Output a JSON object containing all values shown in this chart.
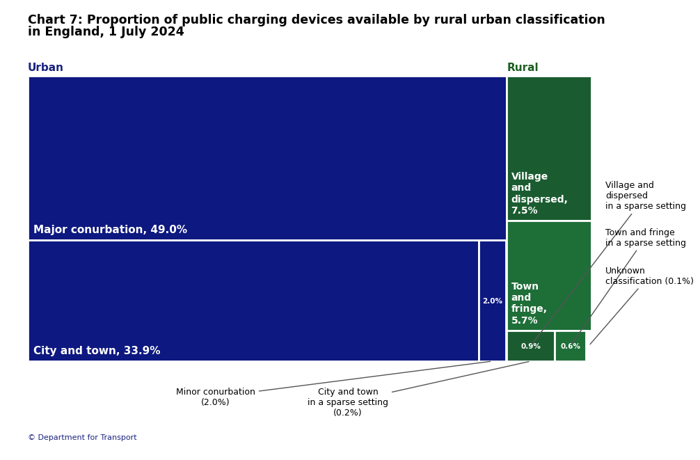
{
  "title_line1": "Chart 7: Proportion of public charging devices available by rural urban classification",
  "title_line2": "in England, 1 July 2024",
  "title_fontsize": 12.5,
  "background_color": "#ffffff",
  "footer": "© Department for Transport",
  "urban_color_major": "#0d1880",
  "urban_color_city": "#0d1880",
  "urban_color_minor": "#0d1880",
  "rural_color_village": "#1a5c30",
  "rural_color_town": "#1e6e38",
  "rural_color_city_sparse": "#1a5c30",
  "rural_color_town_sparse": "#1e6e38",
  "label_urban": "Urban",
  "label_rural": "Rural",
  "label_major": "Major conurbation, 49.0%",
  "label_city": "City and town, 33.9%",
  "label_minor": "2.0%",
  "label_village": "Village\nand\ndispersed,\n7.5%",
  "label_town_fringe": "Town\nand\nfringe,\n5.7%",
  "label_city_sparse": "0.9%",
  "label_town_sparse": "0.6%",
  "annotation_village_sparse": "Village and\ndispersed\nin a sparse setting",
  "annotation_town_sparse": "Town and fringe\nin a sparse setting",
  "annotation_minor": "Minor conurbation\n(2.0%)",
  "annotation_city_sparse": "City and town\nin a sparse setting\n(0.2%)",
  "annotation_unknown": "Unknown\nclassification (0.1%)"
}
